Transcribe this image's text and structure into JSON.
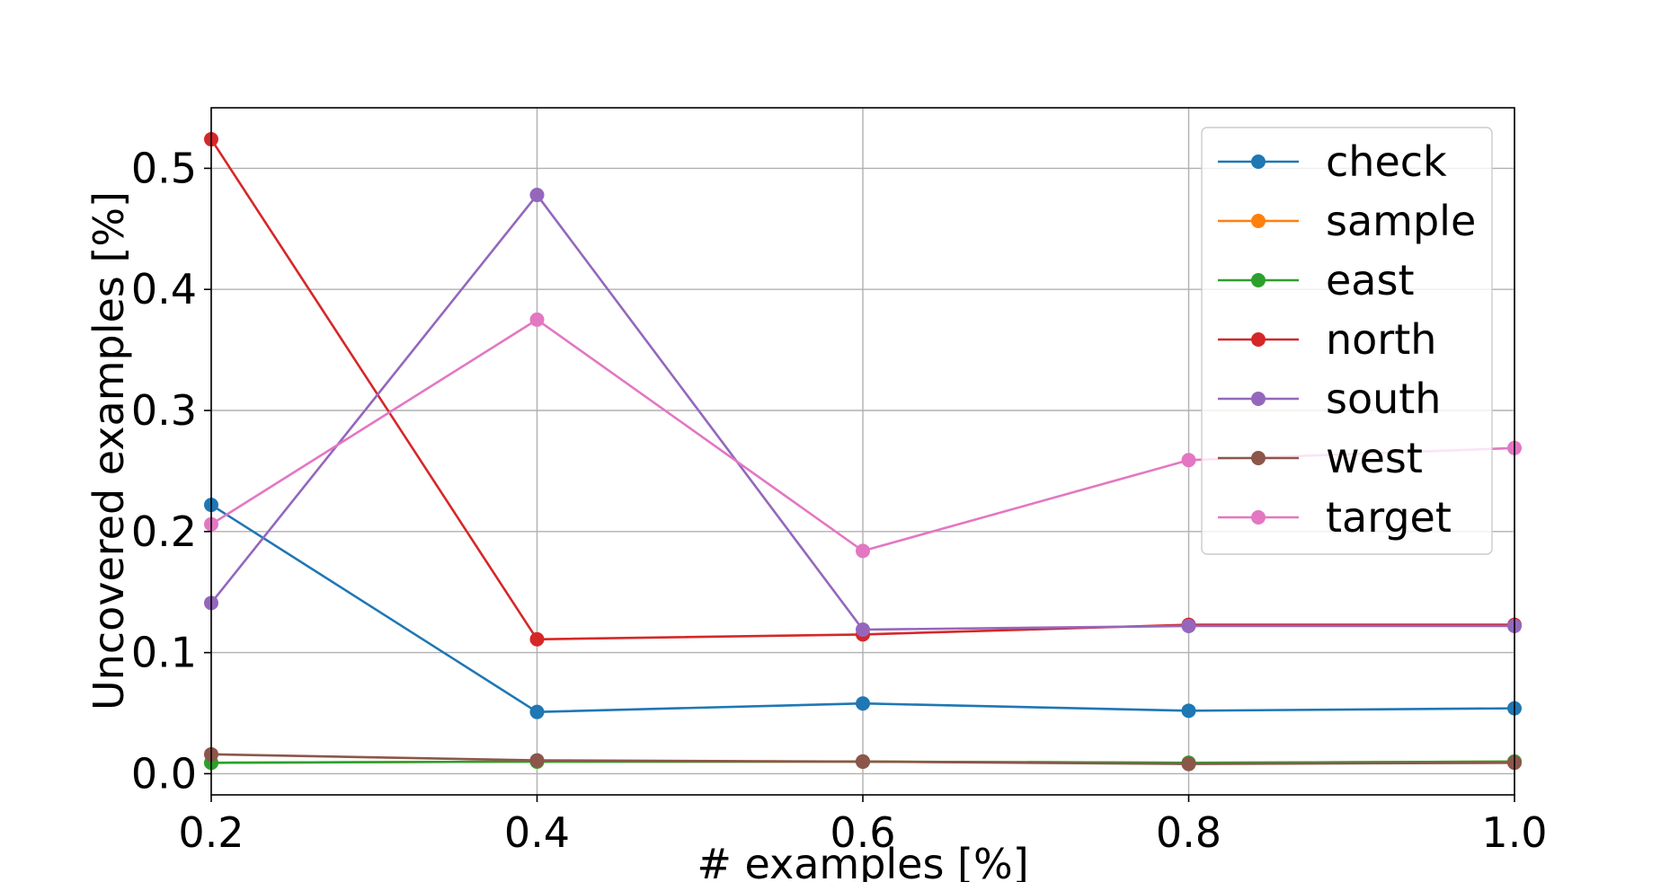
{
  "chart_data": {
    "type": "line",
    "xlabel": "# examples [%]",
    "ylabel": "Uncovered examples [%]",
    "xlim": [
      0.2,
      1.0
    ],
    "ylim": [
      -0.0175,
      0.55
    ],
    "x_ticks": [
      "0.2",
      "0.4",
      "0.6",
      "0.8",
      "1.0"
    ],
    "y_ticks": [
      "0.0",
      "0.1",
      "0.2",
      "0.3",
      "0.4",
      "0.5"
    ],
    "grid": true,
    "legend_position": "top-right",
    "x": [
      0.2,
      0.4,
      0.6,
      0.8,
      1.0
    ],
    "series": [
      {
        "name": "check",
        "color": "#1f77b4",
        "values": [
          0.222,
          0.051,
          0.058,
          0.052,
          0.054
        ]
      },
      {
        "name": "sample",
        "color": "#ff7f0e",
        "values": [
          0.009,
          0.01,
          0.01,
          0.009,
          0.01
        ]
      },
      {
        "name": "east",
        "color": "#2ca02c",
        "values": [
          0.009,
          0.01,
          0.01,
          0.009,
          0.01
        ]
      },
      {
        "name": "north",
        "color": "#d62728",
        "values": [
          0.524,
          0.111,
          0.115,
          0.123,
          0.123
        ]
      },
      {
        "name": "south",
        "color": "#9467bd",
        "values": [
          0.141,
          0.478,
          0.119,
          0.122,
          0.122
        ]
      },
      {
        "name": "west",
        "color": "#8c564b",
        "values": [
          0.016,
          0.011,
          0.01,
          0.008,
          0.009
        ]
      },
      {
        "name": "target",
        "color": "#e377c2",
        "values": [
          0.206,
          0.375,
          0.184,
          0.259,
          0.269
        ]
      }
    ]
  }
}
